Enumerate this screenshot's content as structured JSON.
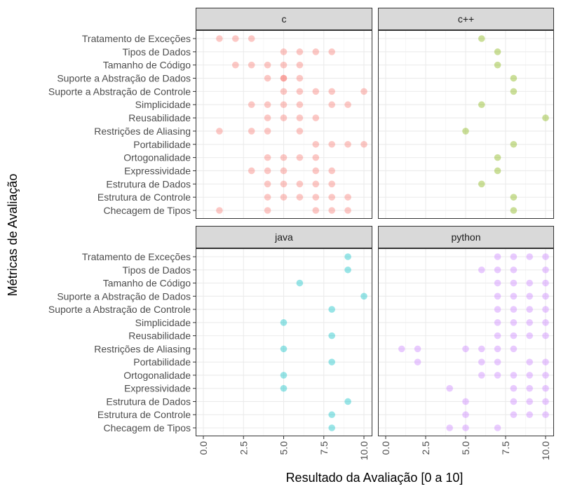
{
  "chart_data": {
    "type": "scatter",
    "layout": "facet-grid 2x2",
    "xlabel": "Resultado da Avaliação [0 a 10]",
    "ylabel": "Métricas de Avaliação",
    "xlim": [
      0,
      10
    ],
    "x_ticks": [
      0,
      2.5,
      5,
      7.5,
      10
    ],
    "x_tick_labels": [
      "0.0",
      "2.5",
      "5.0",
      "7.5",
      "10.0"
    ],
    "grid": true,
    "legend": "none",
    "categories": [
      "Tratamento de Exceções",
      "Tipos de Dados",
      "Tamanho de Código",
      "Suporte a Abstração de Dados",
      "Suporte a Abstração de Controle",
      "Simplicidade",
      "Reusabilidade",
      "Restrições de Aliasing",
      "Portabilidade",
      "Ortogonalidade",
      "Expressividade",
      "Estrutura de Dados",
      "Estrutura de Controle",
      "Checagem de Tipos"
    ],
    "panels": [
      {
        "name": "c",
        "color": "#F8766D",
        "points": [
          {
            "category": "Tratamento de Exceções",
            "values": [
              1,
              2,
              3
            ]
          },
          {
            "category": "Tipos de Dados",
            "values": [
              5,
              6,
              7,
              8
            ]
          },
          {
            "category": "Tamanho de Código",
            "values": [
              2,
              3,
              4,
              5,
              6
            ]
          },
          {
            "category": "Suporte a Abstração de Dados",
            "values": [
              4,
              5,
              5,
              6
            ]
          },
          {
            "category": "Suporte a Abstração de Controle",
            "values": [
              5,
              6,
              7,
              8,
              10
            ]
          },
          {
            "category": "Simplicidade",
            "values": [
              3,
              4,
              5,
              6,
              8,
              9
            ]
          },
          {
            "category": "Reusabilidade",
            "values": [
              4,
              5,
              6,
              7
            ]
          },
          {
            "category": "Restrições de Aliasing",
            "values": [
              1,
              3,
              4,
              6
            ]
          },
          {
            "category": "Portabilidade",
            "values": [
              7,
              8,
              9,
              10
            ]
          },
          {
            "category": "Ortogonalidade",
            "values": [
              4,
              5,
              6,
              7
            ]
          },
          {
            "category": "Expressividade",
            "values": [
              3,
              4,
              5,
              7,
              8
            ]
          },
          {
            "category": "Estrutura de Dados",
            "values": [
              4,
              5,
              6,
              7,
              8
            ]
          },
          {
            "category": "Estrutura de Controle",
            "values": [
              4,
              5,
              6,
              7,
              8,
              9
            ]
          },
          {
            "category": "Checagem de Tipos",
            "values": [
              1,
              4,
              7,
              8,
              9
            ]
          }
        ]
      },
      {
        "name": "c++",
        "color": "#7CAE00",
        "points": [
          {
            "category": "Tratamento de Exceções",
            "values": [
              6
            ]
          },
          {
            "category": "Tipos de Dados",
            "values": [
              7
            ]
          },
          {
            "category": "Tamanho de Código",
            "values": [
              7
            ]
          },
          {
            "category": "Suporte a Abstração de Dados",
            "values": [
              8
            ]
          },
          {
            "category": "Suporte a Abstração de Controle",
            "values": [
              8
            ]
          },
          {
            "category": "Simplicidade",
            "values": [
              6
            ]
          },
          {
            "category": "Reusabilidade",
            "values": [
              10
            ]
          },
          {
            "category": "Restrições de Aliasing",
            "values": [
              5
            ]
          },
          {
            "category": "Portabilidade",
            "values": [
              8
            ]
          },
          {
            "category": "Ortogonalidade",
            "values": [
              7
            ]
          },
          {
            "category": "Expressividade",
            "values": [
              7
            ]
          },
          {
            "category": "Estrutura de Dados",
            "values": [
              6
            ]
          },
          {
            "category": "Estrutura de Controle",
            "values": [
              8
            ]
          },
          {
            "category": "Checagem de Tipos",
            "values": [
              8
            ]
          }
        ]
      },
      {
        "name": "java",
        "color": "#00BFC4",
        "points": [
          {
            "category": "Tratamento de Exceções",
            "values": [
              9
            ]
          },
          {
            "category": "Tipos de Dados",
            "values": [
              9
            ]
          },
          {
            "category": "Tamanho de Código",
            "values": [
              6
            ]
          },
          {
            "category": "Suporte a Abstração de Dados",
            "values": [
              10
            ]
          },
          {
            "category": "Suporte a Abstração de Controle",
            "values": [
              8
            ]
          },
          {
            "category": "Simplicidade",
            "values": [
              5
            ]
          },
          {
            "category": "Reusabilidade",
            "values": [
              8
            ]
          },
          {
            "category": "Restrições de Aliasing",
            "values": [
              5
            ]
          },
          {
            "category": "Portabilidade",
            "values": [
              8
            ]
          },
          {
            "category": "Ortogonalidade",
            "values": [
              5
            ]
          },
          {
            "category": "Expressividade",
            "values": [
              5
            ]
          },
          {
            "category": "Estrutura de Dados",
            "values": [
              9
            ]
          },
          {
            "category": "Estrutura de Controle",
            "values": [
              8
            ]
          },
          {
            "category": "Checagem de Tipos",
            "values": [
              8
            ]
          }
        ]
      },
      {
        "name": "python",
        "color": "#C77CFF",
        "points": [
          {
            "category": "Tratamento de Exceções",
            "values": [
              7,
              8,
              9,
              10
            ]
          },
          {
            "category": "Tipos de Dados",
            "values": [
              6,
              7,
              8,
              10
            ]
          },
          {
            "category": "Tamanho de Código",
            "values": [
              7,
              8,
              9,
              10
            ]
          },
          {
            "category": "Suporte a Abstração de Dados",
            "values": [
              7,
              8,
              9,
              10
            ]
          },
          {
            "category": "Suporte a Abstração de Controle",
            "values": [
              7,
              8,
              9,
              10
            ]
          },
          {
            "category": "Simplicidade",
            "values": [
              7,
              8,
              9,
              10
            ]
          },
          {
            "category": "Reusabilidade",
            "values": [
              7,
              8,
              9,
              10
            ]
          },
          {
            "category": "Restrições de Aliasing",
            "values": [
              1,
              2,
              5,
              6,
              7,
              8
            ]
          },
          {
            "category": "Portabilidade",
            "values": [
              2,
              6,
              7,
              9,
              10
            ]
          },
          {
            "category": "Ortogonalidade",
            "values": [
              6,
              7,
              8,
              9,
              10
            ]
          },
          {
            "category": "Expressividade",
            "values": [
              4,
              8,
              9,
              10
            ]
          },
          {
            "category": "Estrutura de Dados",
            "values": [
              5,
              8,
              9,
              10
            ]
          },
          {
            "category": "Estrutura de Controle",
            "values": [
              5,
              8,
              9,
              10
            ]
          },
          {
            "category": "Checagem de Tipos",
            "values": [
              4,
              5,
              7
            ]
          }
        ]
      }
    ]
  }
}
